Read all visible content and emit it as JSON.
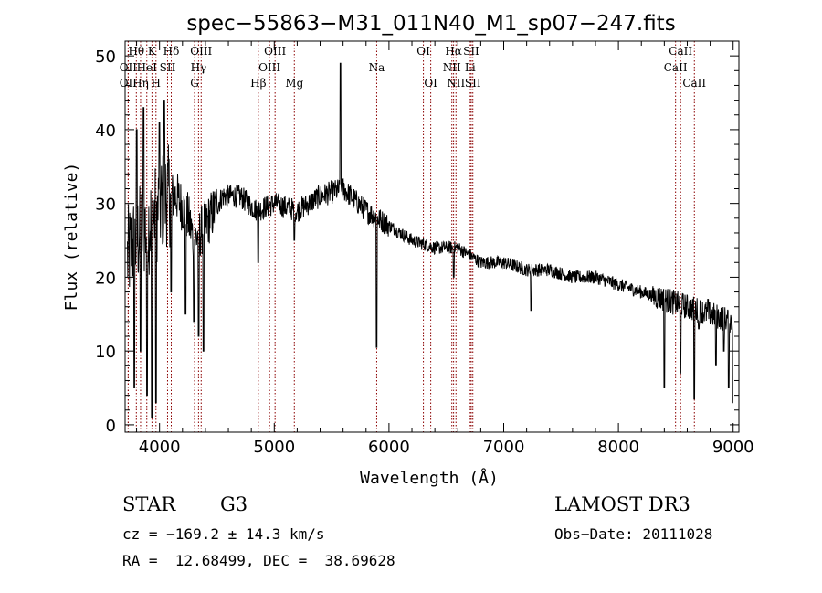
{
  "chart_data": {
    "type": "line",
    "title": "spec−55863−M31_011N40_M1_sp07−247.fits",
    "xlabel": "Wavelength (Å)",
    "ylabel": "Flux (relative)",
    "xlim": [
      3700,
      9050
    ],
    "ylim": [
      -1,
      52
    ],
    "x_ticks": [
      4000,
      5000,
      6000,
      7000,
      8000,
      9000
    ],
    "y_ticks": [
      0,
      10,
      20,
      30,
      40,
      50
    ],
    "x_tick_labels": [
      "4000",
      "5000",
      "6000",
      "7000",
      "8000",
      "9000"
    ],
    "y_tick_labels": [
      "0",
      "10",
      "20",
      "30",
      "40",
      "50"
    ],
    "series": [
      {
        "name": "flux",
        "continuum": [
          [
            3700,
            22
          ],
          [
            3760,
            24
          ],
          [
            3840,
            26
          ],
          [
            3950,
            28
          ],
          [
            4050,
            31
          ],
          [
            4150,
            31
          ],
          [
            4250,
            28
          ],
          [
            4300,
            25
          ],
          [
            4400,
            27
          ],
          [
            4550,
            31
          ],
          [
            4700,
            31
          ],
          [
            4850,
            29
          ],
          [
            5000,
            30
          ],
          [
            5200,
            29
          ],
          [
            5400,
            31
          ],
          [
            5600,
            32
          ],
          [
            5800,
            29
          ],
          [
            6000,
            27
          ],
          [
            6200,
            25
          ],
          [
            6400,
            24
          ],
          [
            6600,
            24
          ],
          [
            6800,
            22
          ],
          [
            7000,
            22
          ],
          [
            7200,
            21
          ],
          [
            7400,
            21
          ],
          [
            7600,
            20
          ],
          [
            7800,
            20
          ],
          [
            8000,
            19
          ],
          [
            8200,
            18
          ],
          [
            8400,
            17
          ],
          [
            8600,
            16
          ],
          [
            8800,
            15
          ],
          [
            9000,
            14
          ]
        ],
        "features": [
          {
            "x": 3780,
            "y": 5
          },
          {
            "x": 3800,
            "y": 40
          },
          {
            "x": 3835,
            "y": 10
          },
          {
            "x": 3860,
            "y": 43
          },
          {
            "x": 3890,
            "y": 4
          },
          {
            "x": 3933,
            "y": 1
          },
          {
            "x": 3968,
            "y": 3
          },
          {
            "x": 4000,
            "y": 41
          },
          {
            "x": 4040,
            "y": 44
          },
          {
            "x": 4102,
            "y": 18
          },
          {
            "x": 4226,
            "y": 15
          },
          {
            "x": 4300,
            "y": 14
          },
          {
            "x": 4340,
            "y": 12
          },
          {
            "x": 4383,
            "y": 10
          },
          {
            "x": 4861,
            "y": 22
          },
          {
            "x": 5175,
            "y": 25
          },
          {
            "x": 5577,
            "y": 49
          },
          {
            "x": 5893,
            "y": 10.5
          },
          {
            "x": 6563,
            "y": 20
          },
          {
            "x": 7240,
            "y": 15.5
          },
          {
            "x": 8400,
            "y": 5
          },
          {
            "x": 8540,
            "y": 7
          },
          {
            "x": 8662,
            "y": 3.5
          },
          {
            "x": 8700,
            "y": 13
          },
          {
            "x": 8780,
            "y": 17
          },
          {
            "x": 8850,
            "y": 8
          },
          {
            "x": 8920,
            "y": 10
          },
          {
            "x": 8960,
            "y": 5
          },
          {
            "x": 9000,
            "y": 3
          }
        ]
      }
    ],
    "lines": [
      {
        "label": "Hθ",
        "x": 3798,
        "row": 0
      },
      {
        "label": "OII",
        "x": 3727,
        "row": 1
      },
      {
        "label": "OII",
        "x": 3727,
        "row": 2
      },
      {
        "label": "K",
        "x": 3934,
        "row": 0
      },
      {
        "label": "HeI",
        "x": 3889,
        "row": 1
      },
      {
        "label": "Hη",
        "x": 3835,
        "row": 2
      },
      {
        "label": "Hδ",
        "x": 4102,
        "row": 0
      },
      {
        "label": "SII",
        "x": 4070,
        "row": 1
      },
      {
        "label": "H",
        "x": 3969,
        "row": 2
      },
      {
        "label": "OIII",
        "x": 4363,
        "row": 0
      },
      {
        "label": "Hγ",
        "x": 4340,
        "row": 1
      },
      {
        "label": "G",
        "x": 4305,
        "row": 2
      },
      {
        "label": "OIII",
        "x": 5007,
        "row": 0
      },
      {
        "label": "OIII",
        "x": 4959,
        "row": 1
      },
      {
        "label": "Hβ",
        "x": 4861,
        "row": 2
      },
      {
        "label": "Mg",
        "x": 5175,
        "row": 2
      },
      {
        "label": "Na",
        "x": 5893,
        "row": 1
      },
      {
        "label": "OI",
        "x": 6300,
        "row": 0
      },
      {
        "label": "OI",
        "x": 6364,
        "row": 2
      },
      {
        "label": "Hα",
        "x": 6563,
        "row": 0
      },
      {
        "label": "NII",
        "x": 6548,
        "row": 1
      },
      {
        "label": "NII",
        "x": 6584,
        "row": 2
      },
      {
        "label": "SII",
        "x": 6717,
        "row": 0
      },
      {
        "label": "Li",
        "x": 6708,
        "row": 1
      },
      {
        "label": "SII",
        "x": 6731,
        "row": 2
      },
      {
        "label": "CaII",
        "x": 8498,
        "row": 1
      },
      {
        "label": "CaII",
        "x": 8542,
        "row": 0
      },
      {
        "label": "CaII",
        "x": 8662,
        "row": 2
      }
    ],
    "line_color": "#8b0000"
  },
  "info": {
    "object_class": "STAR",
    "subclass": "G3",
    "survey": "LAMOST DR3",
    "redshift": "cz = −169.2 ± 14.3 km/s",
    "obs_date": "Obs−Date: 20111028",
    "coords": "RA =  12.68499, DEC =  38.69628"
  }
}
